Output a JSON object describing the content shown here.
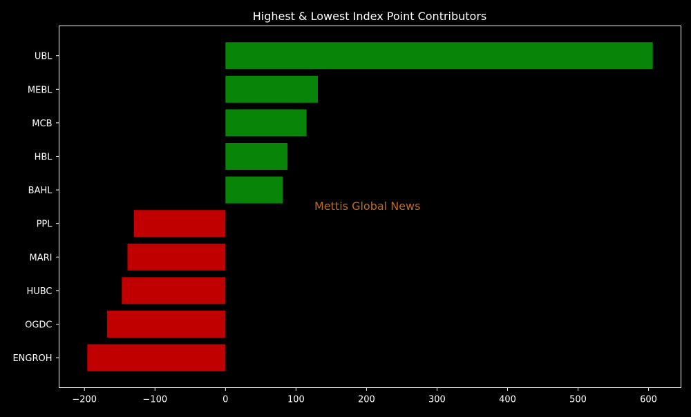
{
  "chart_data": {
    "type": "bar",
    "orientation": "horizontal",
    "title": "Highest & Lowest Index Point Contributors",
    "xlabel": "",
    "ylabel": "",
    "categories": [
      "UBL",
      "MEBL",
      "MCB",
      "HBL",
      "BAHL",
      "PPL",
      "MARI",
      "HUBC",
      "OGDC",
      "ENGROH"
    ],
    "values": [
      606,
      131,
      115,
      88,
      81,
      -130,
      -139,
      -147,
      -168,
      -196
    ],
    "xlim": [
      -236,
      646
    ],
    "xticks": [
      -200,
      -100,
      0,
      100,
      200,
      300,
      400,
      500,
      600
    ],
    "xtick_labels": [
      "−200",
      "−100",
      "0",
      "100",
      "200",
      "300",
      "400",
      "500",
      "600"
    ],
    "grid": false,
    "legend": "none",
    "colors": {
      "positive": "#088508",
      "negative": "#c00000",
      "background": "#000000",
      "axes": "#ffffff",
      "text": "#ffffff",
      "watermark": "#c26a1e"
    }
  },
  "watermark": "Mettis Global News"
}
